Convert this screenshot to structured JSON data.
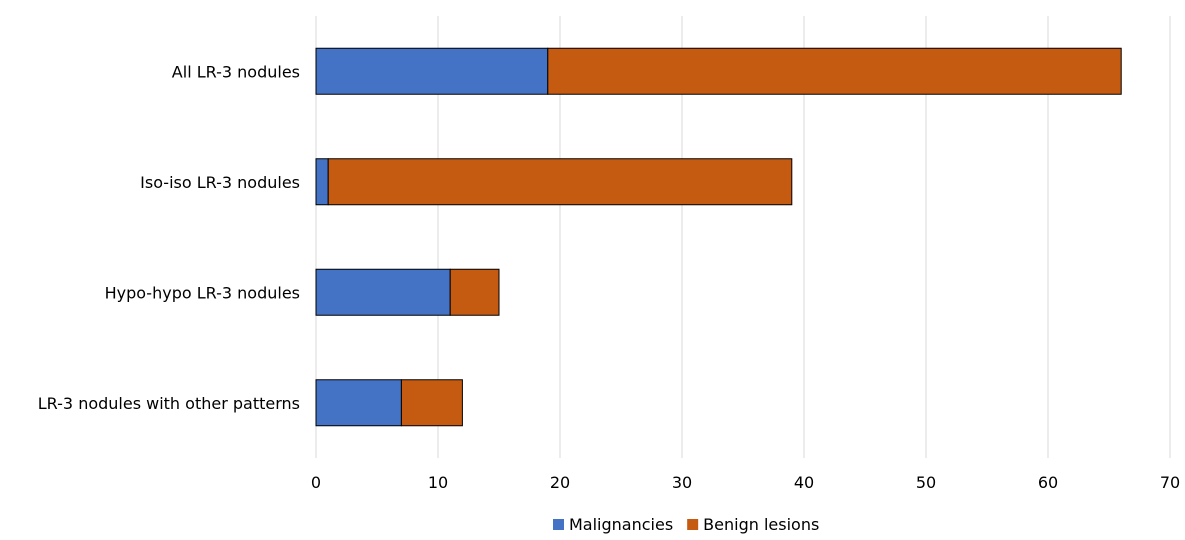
{
  "chart_data": {
    "type": "bar",
    "orientation": "horizontal",
    "stacked": true,
    "title": "",
    "xlabel": "",
    "ylabel": "",
    "categories": [
      "All LR-3 nodules",
      "Iso-iso LR-3 nodules",
      "Hypo-hypo LR-3 nodules",
      "LR-3 nodules with other patterns"
    ],
    "series": [
      {
        "name": "Malignancies",
        "color": "#4472c4",
        "values": [
          19,
          1,
          11,
          7
        ]
      },
      {
        "name": "Benign lesions",
        "color": "#c55a11",
        "values": [
          47,
          38,
          4,
          5
        ]
      }
    ],
    "xlim": [
      0,
      70
    ],
    "xticks": [
      "0",
      "10",
      "20",
      "30",
      "40",
      "50",
      "60",
      "70"
    ],
    "grid": "vertical",
    "legend": "bottom-center"
  }
}
